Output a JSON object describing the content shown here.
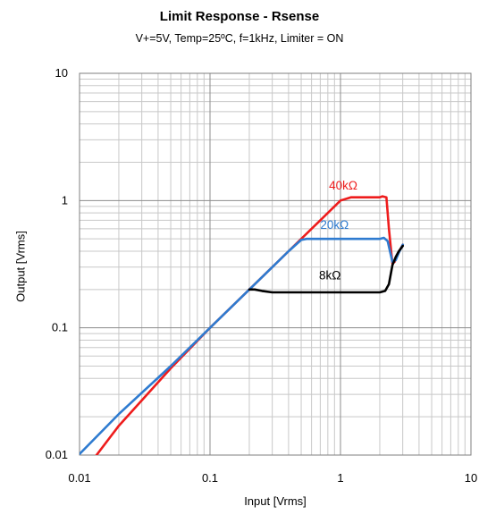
{
  "chart_data": {
    "type": "line",
    "title": "Limit Response - Rsense",
    "subtitle": "V+=5V, Temp=25ºC, f=1kHz, Limiter = ON",
    "xlabel": "Input [Vrms]",
    "ylabel": "Output [Vrms]",
    "x_scale": "log",
    "y_scale": "log",
    "xlim": [
      0.01,
      10
    ],
    "ylim": [
      0.01,
      10
    ],
    "x_ticks": [
      0.01,
      0.1,
      1,
      10
    ],
    "y_ticks": [
      0.01,
      0.1,
      1,
      10
    ],
    "x_tick_labels": [
      "0.01",
      "0.1",
      "1",
      "10"
    ],
    "y_tick_labels": [
      "0.01",
      "0.1",
      "1",
      "10"
    ],
    "grid": true,
    "legend": "none",
    "series": [
      {
        "name": "40kΩ",
        "color": "#ee1c1c",
        "x": [
          0.0125,
          0.02,
          0.05,
          0.1,
          0.2,
          0.4,
          0.7,
          1.0,
          1.2,
          1.6,
          2.0,
          2.1,
          2.25,
          2.35,
          2.5,
          2.6,
          2.75,
          3.0
        ],
        "y": [
          0.009,
          0.017,
          0.048,
          0.1,
          0.2,
          0.4,
          0.7,
          1.0,
          1.06,
          1.06,
          1.06,
          1.08,
          1.06,
          0.6,
          0.32,
          0.33,
          0.38,
          0.45
        ]
      },
      {
        "name": "20kΩ",
        "color": "#2e7bd0",
        "x": [
          0.01,
          0.02,
          0.05,
          0.1,
          0.2,
          0.3,
          0.4,
          0.5,
          0.55,
          1.0,
          1.5,
          2.0,
          2.15,
          2.3,
          2.5,
          2.65,
          2.8,
          3.0
        ],
        "y": [
          0.0102,
          0.021,
          0.05,
          0.1,
          0.2,
          0.3,
          0.4,
          0.49,
          0.5,
          0.5,
          0.5,
          0.5,
          0.51,
          0.48,
          0.33,
          0.34,
          0.39,
          0.45
        ]
      },
      {
        "name": "8kΩ",
        "color": "#000000",
        "x": [
          0.2,
          0.22,
          0.25,
          0.3,
          0.5,
          1.0,
          1.5,
          2.0,
          2.2,
          2.35,
          2.5,
          2.65,
          2.8,
          3.0
        ],
        "y": [
          0.2,
          0.2,
          0.195,
          0.19,
          0.19,
          0.19,
          0.19,
          0.19,
          0.195,
          0.22,
          0.31,
          0.36,
          0.4,
          0.44
        ]
      }
    ],
    "annotations": [
      {
        "text": "40kΩ",
        "color": "#ee1c1c",
        "x": 1.05,
        "y": 1.22
      },
      {
        "text": "20kΩ",
        "color": "#2e7bd0",
        "x": 0.9,
        "y": 0.6
      },
      {
        "text": "8kΩ",
        "color": "#000000",
        "x": 0.83,
        "y": 0.24
      }
    ]
  }
}
